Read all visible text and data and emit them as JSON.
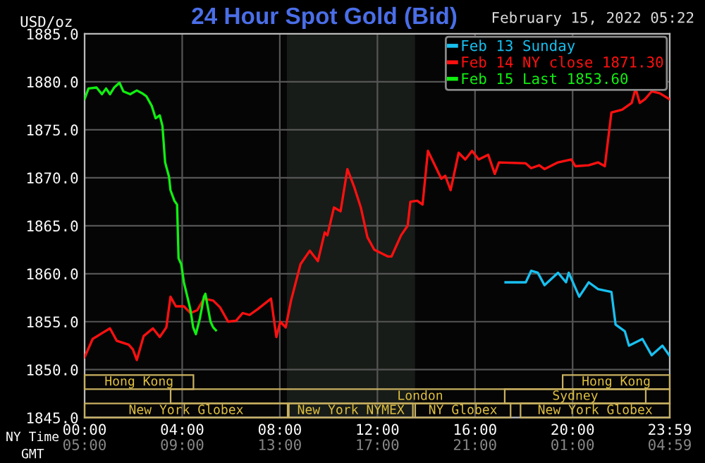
{
  "chart_data": {
    "type": "line",
    "title": "24 Hour Spot Gold (Bid)",
    "subtitle": "February 15, 2022 05:22",
    "ylabel": "USD/oz",
    "xlabel": "NY Time",
    "x2label": "GMT",
    "xlim": [
      0,
      23.98
    ],
    "ylim": [
      1845,
      1885
    ],
    "xticks": [
      {
        "value": 0,
        "label": "00:00"
      },
      {
        "value": 4,
        "label": "04:00"
      },
      {
        "value": 8,
        "label": "08:00"
      },
      {
        "value": 12,
        "label": "12:00"
      },
      {
        "value": 16,
        "label": "16:00"
      },
      {
        "value": 20,
        "label": "20:00"
      },
      {
        "value": 23.98,
        "label": "23:59"
      }
    ],
    "x2lim": [
      "2022-02-15T05:00",
      "2022-02-16T04:59"
    ],
    "x2ticks": [
      {
        "value": "2022-02-15T05:00",
        "label": "05:00"
      },
      {
        "value": "2022-02-15T09:00",
        "label": "09:00"
      },
      {
        "value": "2022-02-15T13:00",
        "label": "13:00"
      },
      {
        "value": "2022-02-15T17:00",
        "label": "17:00"
      },
      {
        "value": "2022-02-15T21:00",
        "label": "21:00"
      },
      {
        "value": "2022-02-16T01:00",
        "label": "01:00"
      },
      {
        "value": "2022-02-16T04:59",
        "label": "04:59"
      }
    ],
    "yticks": [
      {
        "value": 1845,
        "label": "1845.0"
      },
      {
        "value": 1850,
        "label": "1850.0"
      },
      {
        "value": 1855,
        "label": "1855.0"
      },
      {
        "value": 1860,
        "label": "1860.0"
      },
      {
        "value": 1865,
        "label": "1865.0"
      },
      {
        "value": 1870,
        "label": "1870.0"
      },
      {
        "value": 1875,
        "label": "1875.0"
      },
      {
        "value": 1880,
        "label": "1880.0"
      },
      {
        "value": 1885,
        "label": "1885.0"
      }
    ],
    "grid": true,
    "legend": "top right",
    "marker": "none",
    "line_style": "solid",
    "bands": [
      {
        "axis": "x",
        "from": 8.33,
        "to": 13.5,
        "color": "#181c18"
      }
    ],
    "series": [
      {
        "name": "Feb 13 Sunday",
        "color": "#18c0f0",
        "x": [
          17.25,
          18.08,
          18.3,
          18.57,
          18.85,
          19.4,
          19.73,
          19.84,
          20.27,
          20.66,
          21.04,
          21.59,
          21.76,
          22.14,
          22.31,
          22.86,
          23.24,
          23.68,
          23.96
        ],
        "values": [
          1859.1,
          1859.1,
          1860.3,
          1860.1,
          1858.8,
          1860.1,
          1859.1,
          1860.1,
          1857.6,
          1859.1,
          1858.4,
          1858.1,
          1854.7,
          1854.0,
          1852.5,
          1853.2,
          1851.5,
          1852.5,
          1851.5
        ]
      },
      {
        "name": "Feb 14 NY close 1871.30",
        "color": "#ff1010",
        "x": [
          0,
          0.33,
          0.71,
          1.04,
          1.32,
          1.81,
          1.98,
          2.14,
          2.42,
          2.8,
          3.08,
          3.35,
          3.52,
          3.74,
          4.07,
          4.34,
          4.62,
          4.89,
          5.27,
          5.55,
          5.88,
          6.21,
          6.48,
          6.76,
          7.09,
          7.64,
          7.86,
          8.02,
          8.24,
          8.46,
          8.85,
          9.23,
          9.56,
          9.84,
          9.95,
          10.22,
          10.49,
          10.77,
          11.04,
          11.32,
          11.59,
          11.87,
          12.42,
          12.58,
          12.97,
          13.24,
          13.35,
          13.63,
          13.85,
          14.07,
          14.62,
          14.78,
          15.0,
          15.33,
          15.6,
          15.88,
          16.15,
          16.54,
          16.81,
          16.98,
          18.08,
          18.3,
          18.63,
          18.85,
          19.4,
          19.95,
          20.11,
          20.66,
          21.04,
          21.32,
          21.59,
          22.03,
          22.42,
          22.58,
          22.75,
          22.97,
          23.24,
          23.57,
          23.96
        ],
        "values": [
          1851.3,
          1853.2,
          1853.8,
          1854.3,
          1853.0,
          1852.6,
          1852.1,
          1851.0,
          1853.5,
          1854.3,
          1853.4,
          1854.4,
          1857.6,
          1856.6,
          1856.6,
          1855.9,
          1856.2,
          1857.4,
          1857.2,
          1856.5,
          1855.0,
          1855.1,
          1855.9,
          1855.7,
          1856.3,
          1857.4,
          1853.4,
          1855.0,
          1854.4,
          1857.2,
          1861.0,
          1862.4,
          1861.3,
          1864.3,
          1864.0,
          1866.9,
          1866.5,
          1870.9,
          1869.1,
          1866.9,
          1863.8,
          1862.5,
          1861.8,
          1861.8,
          1864.0,
          1865.0,
          1867.5,
          1867.6,
          1867.2,
          1872.8,
          1869.9,
          1870.2,
          1868.7,
          1872.6,
          1871.9,
          1872.8,
          1871.9,
          1872.4,
          1870.4,
          1871.6,
          1871.5,
          1871.0,
          1871.3,
          1870.9,
          1871.6,
          1871.9,
          1871.2,
          1871.3,
          1871.6,
          1871.2,
          1876.8,
          1877.1,
          1877.8,
          1879.3,
          1877.8,
          1878.2,
          1879.0,
          1878.8,
          1878.2
        ]
      },
      {
        "name": "Feb 15 Last 1853.60",
        "color": "#10f010",
        "x": [
          0,
          0.16,
          0.49,
          0.71,
          0.88,
          1.04,
          1.21,
          1.43,
          1.59,
          1.87,
          2.14,
          2.36,
          2.53,
          2.75,
          2.91,
          3.08,
          3.19,
          3.3,
          3.46,
          3.52,
          3.68,
          3.79,
          3.85,
          3.96,
          4.07,
          4.23,
          4.34,
          4.45,
          4.56,
          4.73,
          4.89,
          4.95,
          5.05,
          5.16,
          5.27,
          5.38
        ],
        "values": [
          1878.2,
          1879.3,
          1879.4,
          1878.7,
          1879.3,
          1878.7,
          1879.4,
          1879.9,
          1879.0,
          1878.7,
          1879.1,
          1878.8,
          1878.5,
          1877.5,
          1876.2,
          1876.5,
          1875.4,
          1871.6,
          1870.1,
          1868.7,
          1867.6,
          1867.2,
          1861.6,
          1861.0,
          1859.1,
          1857.4,
          1856.2,
          1854.4,
          1853.7,
          1855.4,
          1857.6,
          1857.9,
          1856.5,
          1855.0,
          1854.4,
          1854.1
        ]
      }
    ],
    "annotations": [
      "Hong Kong",
      "London",
      "New York Globex",
      "New York NYMEX",
      "NY Globex",
      "Hong Kong",
      "Sydney",
      "New York Globex"
    ]
  }
}
